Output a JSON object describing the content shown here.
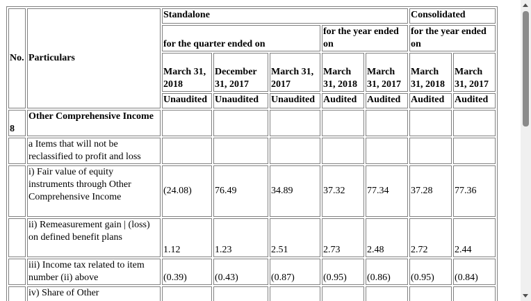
{
  "header": {
    "no": "No.",
    "particulars": "Particulars",
    "standalone": "Standalone",
    "consolidated": "Consolidated",
    "quarter_ended": "for the quarter ended on",
    "year_ended_standalone": "for the year ended on",
    "year_ended_consolidated": "for the year ended on",
    "periods": [
      "March 31, 2018",
      "December 31, 2017",
      "March 31, 2017",
      "March 31, 2018",
      "March 31, 2017",
      "March 31, 2018",
      "March 31, 2017"
    ],
    "status": [
      "Unaudited",
      "Unaudited",
      "Unaudited",
      "Audited",
      "Audited",
      "Audited",
      "Audited"
    ]
  },
  "rows": [
    {
      "no": "8",
      "particulars": "Other Comprehensive Income",
      "values": [
        "",
        "",
        "",
        "",
        "",
        "",
        ""
      ]
    },
    {
      "no": "",
      "particulars": "a Items that will not be reclassified to profit and loss",
      "values": [
        "",
        "",
        "",
        "",
        "",
        "",
        ""
      ]
    },
    {
      "no": "",
      "particulars": "i) Fair value of equity instruments through Other Comprehensive Income",
      "values": [
        "(24.08)",
        "76.49",
        "34.89",
        "37.32",
        "77.34",
        "37.28",
        "77.36"
      ]
    },
    {
      "no": "",
      "particulars": "ii) Remeasurement gain | (loss) on defined benefit plans",
      "values": [
        "1.12",
        "1.23",
        "2.51",
        "2.73",
        "2.48",
        "2.72",
        "2.44"
      ]
    },
    {
      "no": "",
      "particulars": "iii) Income tax related to item number (ii) above",
      "values": [
        "(0.39)",
        "(0.43)",
        "(0.87)",
        "(0.95)",
        "(0.86)",
        "(0.95)",
        "(0.84)"
      ]
    },
    {
      "no": "",
      "particulars": "iv) Share of Other",
      "values": [
        "",
        "",
        "",
        "",
        "",
        "",
        ""
      ]
    }
  ]
}
